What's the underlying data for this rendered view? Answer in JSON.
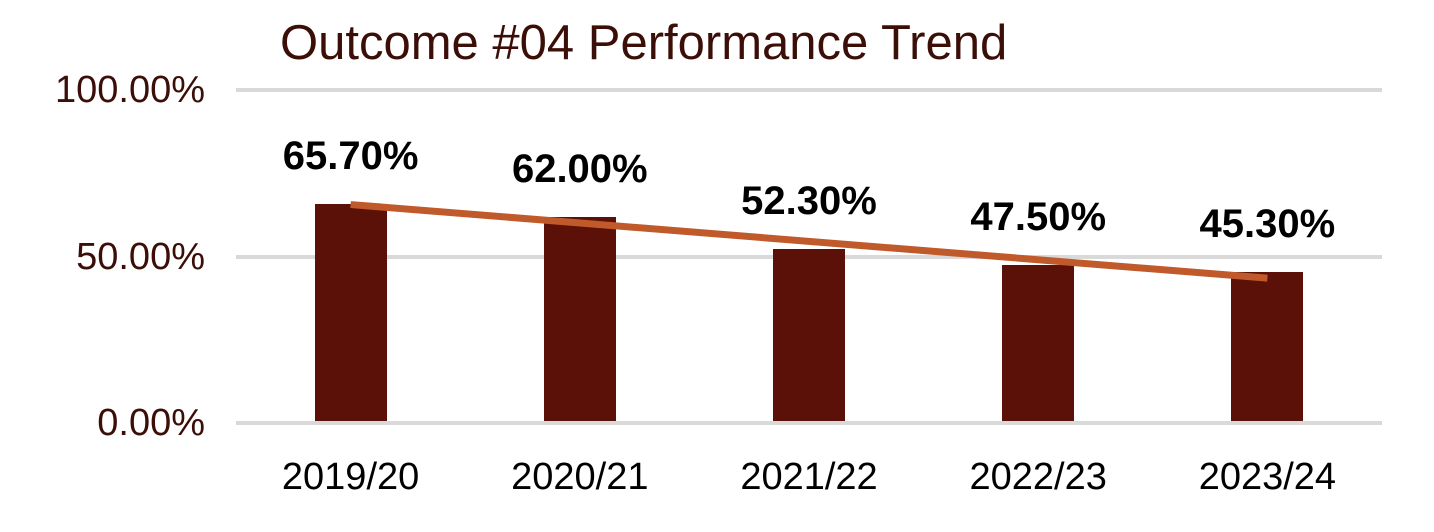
{
  "chart_data": {
    "type": "bar",
    "title": "Outcome #04 Performance Trend",
    "categories": [
      "2019/20",
      "2020/21",
      "2021/22",
      "2022/23",
      "2023/24"
    ],
    "values": [
      65.7,
      62.0,
      52.3,
      47.5,
      45.3
    ],
    "data_labels": [
      "65.70%",
      "62.00%",
      "52.30%",
      "47.50%",
      "45.30%"
    ],
    "y_ticks": [
      {
        "label": "100.00%",
        "value": 100
      },
      {
        "label": "50.00%",
        "value": 50
      },
      {
        "label": "0.00%",
        "value": 0
      }
    ],
    "ylim": [
      0,
      100
    ],
    "xlabel": "",
    "ylabel": "",
    "grid": true,
    "legend": "none",
    "trendline": {
      "type": "linear",
      "start_value": 65.6,
      "end_value": 43.5
    },
    "colors": {
      "bar": "#5b1008",
      "trendline": "#c05a2b",
      "gridline": "#d9d9d9",
      "title_text": "#3b0f08",
      "y_tick_text": "#3b0f08",
      "data_label_text": "#000000",
      "x_tick_text": "#000000",
      "background": "#ffffff"
    }
  }
}
